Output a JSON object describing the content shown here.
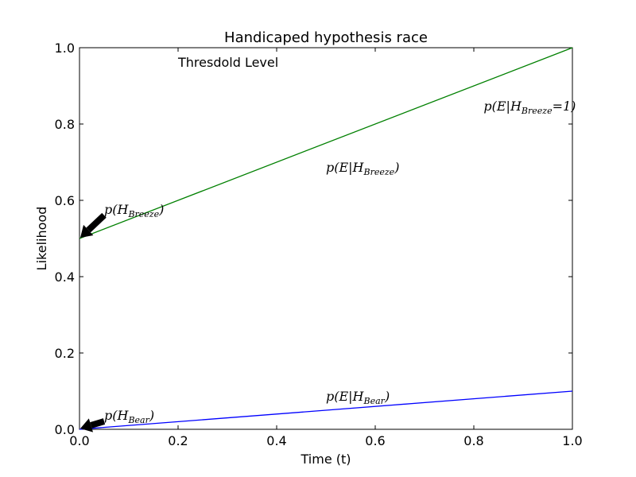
{
  "chart_data": {
    "type": "line",
    "title": "Handicaped hypothesis race",
    "xlabel": "Time (t)",
    "ylabel": "Likelihood",
    "xlim": [
      0,
      1
    ],
    "ylim": [
      0,
      1
    ],
    "x_ticks": [
      "0.0",
      "0.2",
      "0.4",
      "0.6",
      "0.8",
      "1.0"
    ],
    "y_ticks": [
      "0.0",
      "0.2",
      "0.4",
      "0.6",
      "0.8",
      "1.0"
    ],
    "grid": false,
    "series": [
      {
        "x": [
          0,
          1
        ],
        "y": [
          0.5,
          1.0
        ],
        "color": "#008000"
      },
      {
        "x": [
          0,
          1
        ],
        "y": [
          0.0,
          0.1
        ],
        "color": "#0000ff"
      }
    ],
    "threshold": {
      "y": 1.0,
      "label": "Thresdold Level",
      "color": "#000000"
    },
    "annotations": [
      {
        "id": "breeze-series",
        "base": "p(E|H",
        "sub": "Breeze",
        "tail": ")",
        "x": 0.5,
        "y": 0.7
      },
      {
        "id": "breeze-end",
        "base": "p(E|H",
        "sub": "Breeze",
        "tail": "=1)",
        "x": 0.82,
        "y": 0.86
      },
      {
        "id": "bear-series",
        "base": "p(E|H",
        "sub": "Bear",
        "tail": ")",
        "x": 0.5,
        "y": 0.1
      },
      {
        "id": "breeze-prior",
        "base": "p(H",
        "sub": "Breeze",
        "tail": ")",
        "x": 0.05,
        "y": 0.59,
        "arrow_to": [
          0.0,
          0.5
        ]
      },
      {
        "id": "bear-prior",
        "base": "p(H",
        "sub": "Bear",
        "tail": ")",
        "x": 0.05,
        "y": 0.05,
        "arrow_to": [
          0.0,
          0.0
        ]
      }
    ]
  }
}
